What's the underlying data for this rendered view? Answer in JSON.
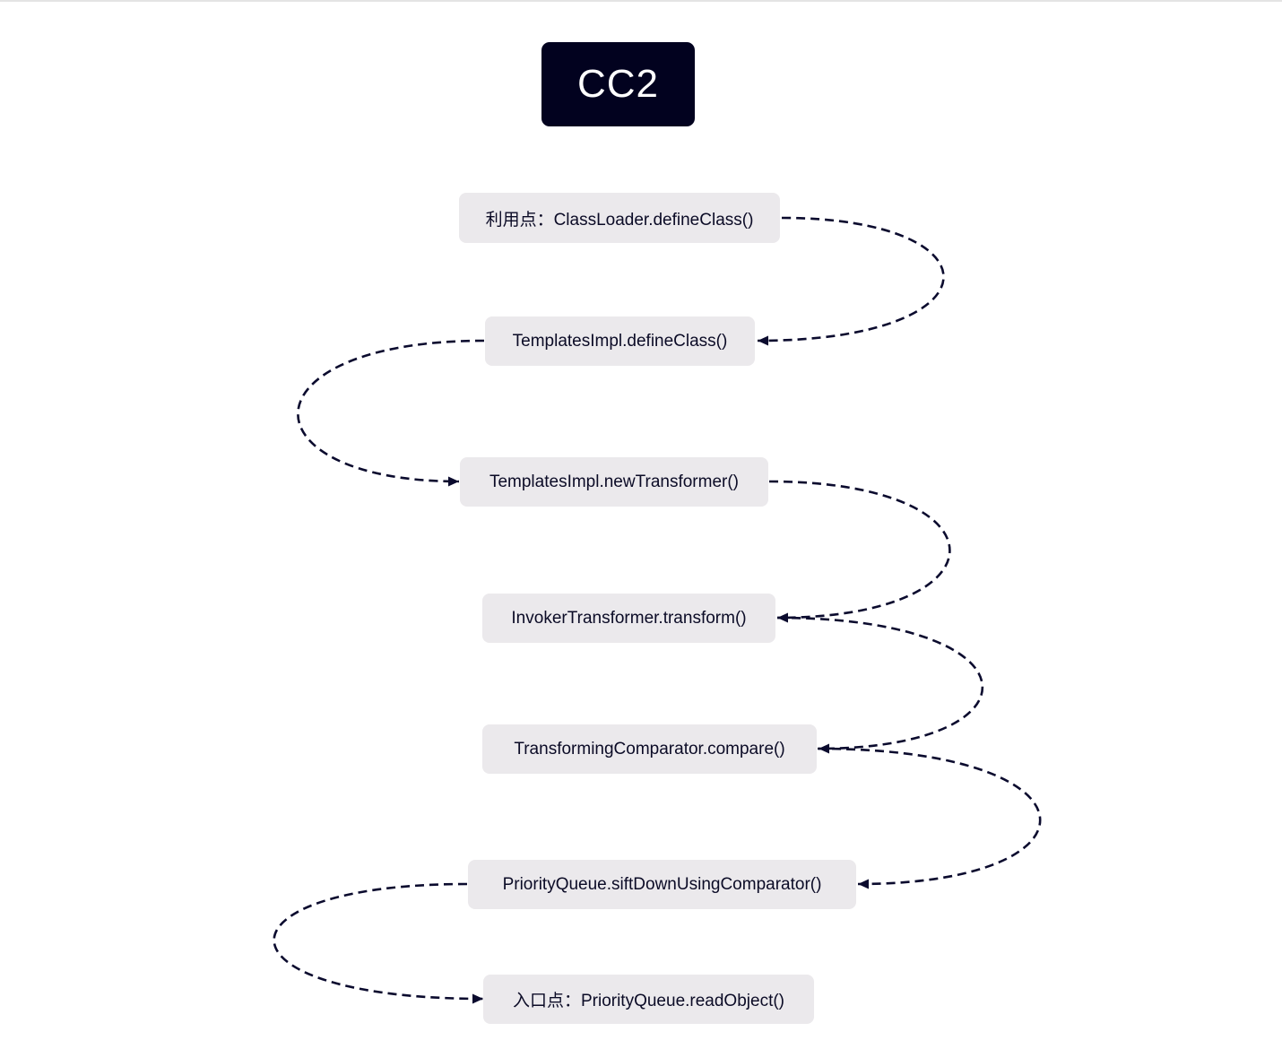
{
  "title": "CC2",
  "nodes": [
    {
      "label": "利用点：ClassLoader.defineClass()"
    },
    {
      "label": "TemplatesImpl.defineClass()"
    },
    {
      "label": "TemplatesImpl.newTransformer()"
    },
    {
      "label": "InvokerTransformer.transform()"
    },
    {
      "label": "TransformingComparator.compare()"
    },
    {
      "label": "PriorityQueue.siftDownUsingComparator()"
    },
    {
      "label": "入口点：PriorityQueue.readObject()"
    }
  ],
  "edges": [
    {
      "from": 0,
      "to": 1
    },
    {
      "from": 1,
      "to": 2
    },
    {
      "from": 2,
      "to": 3
    },
    {
      "from": 3,
      "to": 4
    },
    {
      "from": 4,
      "to": 5
    },
    {
      "from": 5,
      "to": 6
    }
  ],
  "colors": {
    "title_bg": "#02021f",
    "title_fg": "#ffffff",
    "node_bg": "#ebe9ec",
    "node_fg": "#0b0b26",
    "edge": "#0b0b2e"
  }
}
